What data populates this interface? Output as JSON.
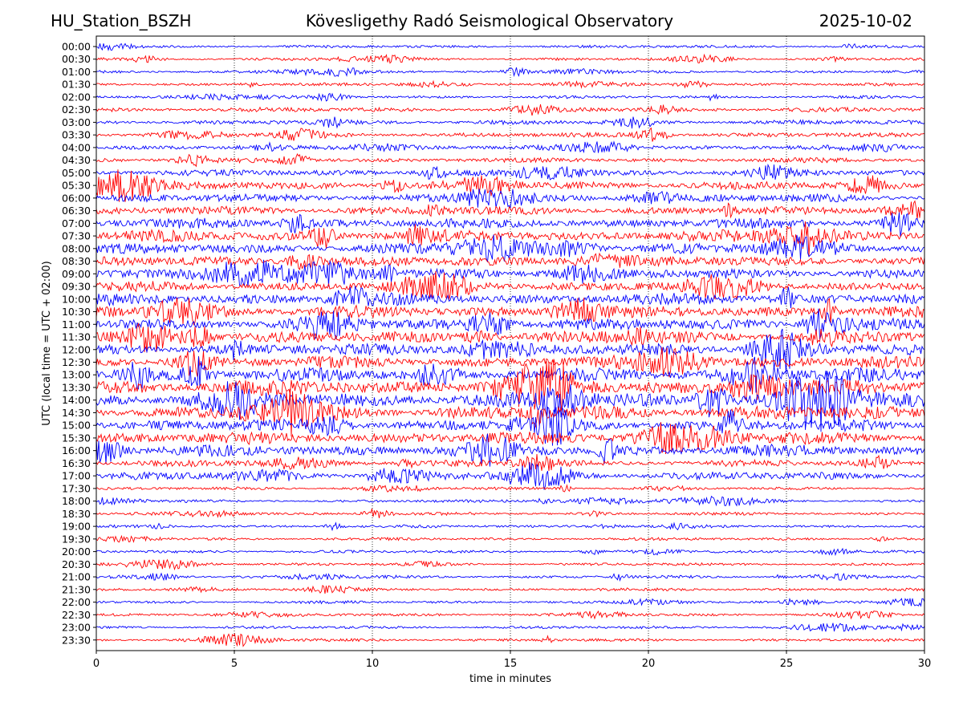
{
  "header": {
    "station": "HU_Station_BSZH",
    "observatory": "Kövesligethy Radó Seismological Observatory",
    "date": "2025-10-02"
  },
  "chart_data": {
    "type": "line",
    "title": "Kövesligethy Radó Seismological Observatory",
    "xlabel": "time in minutes",
    "ylabel": "UTC (local time = UTC + 02:00)",
    "xlim": [
      0,
      30
    ],
    "xticks": [
      0,
      5,
      10,
      15,
      20,
      25,
      30
    ],
    "grid": "vertical dotted at x ticks",
    "trace_colors": [
      "#0000ff",
      "#ff0000"
    ],
    "series": [
      {
        "name": "00:00",
        "amplitude": 1
      },
      {
        "name": "00:30",
        "amplitude": 1
      },
      {
        "name": "01:00",
        "amplitude": 1
      },
      {
        "name": "01:30",
        "amplitude": 1
      },
      {
        "name": "02:00",
        "amplitude": 1
      },
      {
        "name": "02:30",
        "amplitude": 2
      },
      {
        "name": "03:00",
        "amplitude": 2
      },
      {
        "name": "03:30",
        "amplitude": 2
      },
      {
        "name": "04:00",
        "amplitude": 2
      },
      {
        "name": "04:30",
        "amplitude": 2
      },
      {
        "name": "05:00",
        "amplitude": 3
      },
      {
        "name": "05:30",
        "amplitude": 4
      },
      {
        "name": "06:00",
        "amplitude": 4
      },
      {
        "name": "06:30",
        "amplitude": 4
      },
      {
        "name": "07:00",
        "amplitude": 5
      },
      {
        "name": "07:30",
        "amplitude": 6
      },
      {
        "name": "08:00",
        "amplitude": 5
      },
      {
        "name": "08:30",
        "amplitude": 5
      },
      {
        "name": "09:00",
        "amplitude": 5
      },
      {
        "name": "09:30",
        "amplitude": 5
      },
      {
        "name": "10:00",
        "amplitude": 6
      },
      {
        "name": "10:30",
        "amplitude": 6
      },
      {
        "name": "11:00",
        "amplitude": 6
      },
      {
        "name": "11:30",
        "amplitude": 6
      },
      {
        "name": "12:00",
        "amplitude": 6
      },
      {
        "name": "12:30",
        "amplitude": 6
      },
      {
        "name": "13:00",
        "amplitude": 7
      },
      {
        "name": "13:30",
        "amplitude": 8
      },
      {
        "name": "14:00",
        "amplitude": 8
      },
      {
        "name": "14:30",
        "amplitude": 7
      },
      {
        "name": "15:00",
        "amplitude": 6
      },
      {
        "name": "15:30",
        "amplitude": 6
      },
      {
        "name": "16:00",
        "amplitude": 6
      },
      {
        "name": "16:30",
        "amplitude": 3
      },
      {
        "name": "17:00",
        "amplitude": 4
      },
      {
        "name": "17:30",
        "amplitude": 1
      },
      {
        "name": "18:00",
        "amplitude": 1
      },
      {
        "name": "18:30",
        "amplitude": 1
      },
      {
        "name": "19:00",
        "amplitude": 1
      },
      {
        "name": "19:30",
        "amplitude": 1
      },
      {
        "name": "20:00",
        "amplitude": 1
      },
      {
        "name": "20:30",
        "amplitude": 1
      },
      {
        "name": "21:00",
        "amplitude": 1
      },
      {
        "name": "21:30",
        "amplitude": 1
      },
      {
        "name": "22:00",
        "amplitude": 1
      },
      {
        "name": "22:30",
        "amplitude": 1
      },
      {
        "name": "23:00",
        "amplitude": 1
      },
      {
        "name": "23:30",
        "amplitude": 1
      }
    ]
  }
}
